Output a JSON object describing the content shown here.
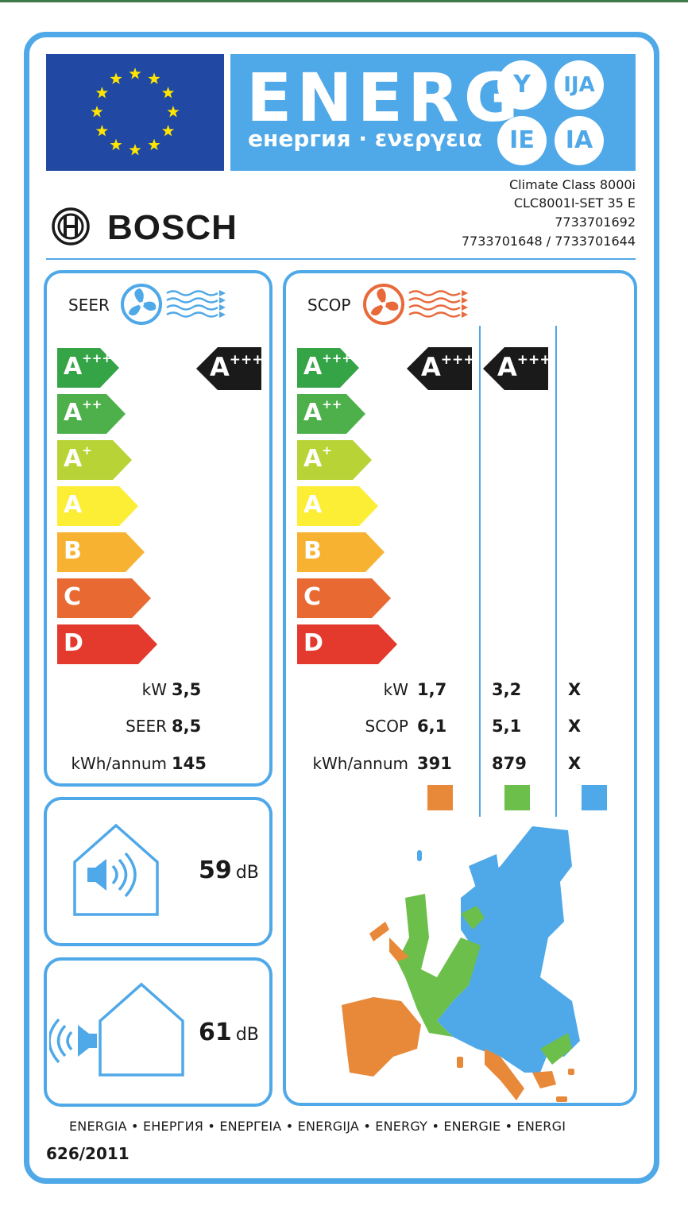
{
  "header": {
    "energy_word": "ENERG",
    "energy_sub": "енергия · ενεργεια",
    "suffixes": [
      "Y",
      "IJA",
      "IE",
      "IA"
    ]
  },
  "supplier": {
    "brand": "BOSCH",
    "model_lines": [
      "Climate Class 8000i",
      "CLC8001I-SET 35 E",
      "7733701692",
      "7733701648 / 7733701644"
    ]
  },
  "classes": [
    "A",
    "A",
    "A",
    "A",
    "B",
    "C",
    "D"
  ],
  "class_suffixes": [
    "+++",
    "++",
    "+",
    "",
    "",
    "",
    ""
  ],
  "class_colors": [
    "#35a447",
    "#4db04a",
    "#b8d335",
    "#fced35",
    "#f7b232",
    "#e86931",
    "#e43a2e"
  ],
  "seer": {
    "title": "SEER",
    "indicator": {
      "letter": "A",
      "suffix": "+++",
      "class_index": 0
    },
    "rows": [
      {
        "label": "kW",
        "value": "3,5"
      },
      {
        "label": "SEER",
        "value": "8,5"
      },
      {
        "label": "kWh/annum",
        "value": "145"
      }
    ]
  },
  "scop": {
    "title": "SCOP",
    "indicators": [
      {
        "letter": "A",
        "suffix": "+++",
        "class_index": 0
      },
      {
        "letter": "A",
        "suffix": "+++",
        "class_index": 0
      }
    ],
    "labels": [
      "kW",
      "SCOP",
      "kWh/annum"
    ],
    "columns": [
      {
        "color": "#e8893a",
        "values": [
          "1,7",
          "6,1",
          "391"
        ]
      },
      {
        "color": "#6cbf4a",
        "values": [
          "3,2",
          "5,1",
          "879"
        ]
      },
      {
        "color": "#4fa8e8",
        "values": [
          "X",
          "X",
          "X"
        ]
      }
    ]
  },
  "noise": {
    "indoor": {
      "value": "59",
      "unit": "dB"
    },
    "outdoor": {
      "value": "61",
      "unit": "dB"
    }
  },
  "footer": {
    "languages": "ENERGIA • ЕНЕРГИЯ • ΕΝΕΡΓΕΙΑ • ENERGIJA • ENERGY • ENERGIE • ENERGI",
    "regulation": "626/2011"
  }
}
